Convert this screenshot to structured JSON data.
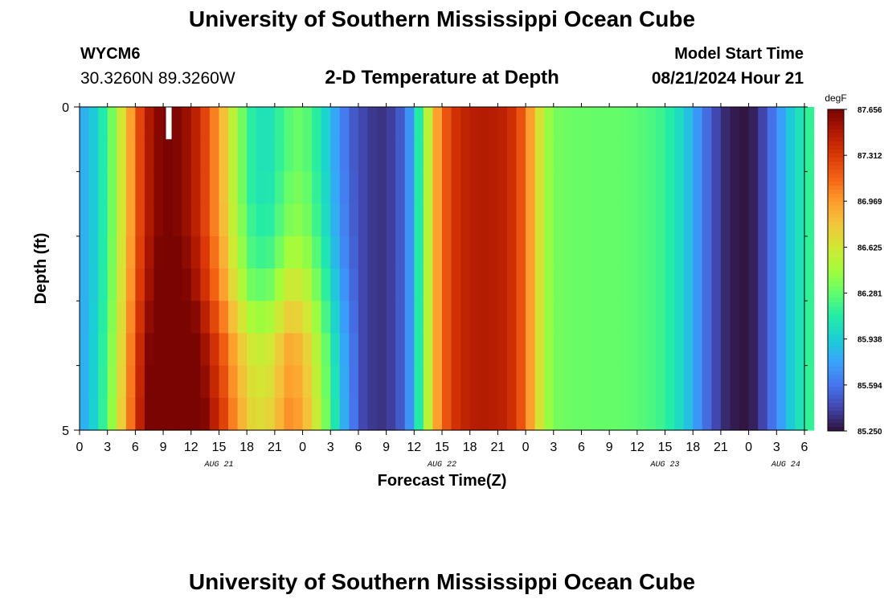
{
  "page": {
    "title": "University of Southern Mississippi Ocean Cube",
    "footer_title": "University of Southern Mississippi Ocean Cube",
    "station_id": "WYCM6",
    "coordinates": "30.3260N  89.3260W",
    "start_label": "Model Start Time",
    "start_value": "08/21/2024 Hour 21",
    "subtitle": "2-D Temperature at Depth"
  },
  "chart_data": {
    "type": "heatmap",
    "title": "2-D Temperature at Depth",
    "xlabel": "Forecast Time(Z)",
    "ylabel": "Depth (ft)",
    "x_ticks": [
      "0",
      "3",
      "6",
      "9",
      "12",
      "15",
      "18",
      "21",
      "0",
      "3",
      "6",
      "9",
      "12",
      "15",
      "18",
      "21",
      "0",
      "3",
      "6",
      "9",
      "12",
      "15",
      "18",
      "21",
      "0",
      "3",
      "6"
    ],
    "date_labels": [
      "AUG 21",
      "AUG 22",
      "AUG 23",
      "AUG 24"
    ],
    "y_ticks": [
      "0",
      "5"
    ],
    "ylim": [
      0,
      5
    ],
    "x_range_hours": [
      0,
      78
    ],
    "depth_levels_ft": [
      0.0,
      0.5,
      1.0,
      1.5,
      2.0,
      2.5,
      3.0,
      3.5,
      4.0,
      4.5
    ],
    "colorbar": {
      "unit": "degF",
      "ticks": [
        "87.656",
        "87.312",
        "86.969",
        "86.625",
        "86.281",
        "85.938",
        "85.594",
        "85.250"
      ],
      "min": 85.25,
      "max": 87.656,
      "colors": [
        "#30123b",
        "#4145ab",
        "#4675ed",
        "#39a2fc",
        "#1bcfd4",
        "#24eca6",
        "#61fc6c",
        "#a4fc3b",
        "#d1e834",
        "#f3c63a",
        "#fe9b2d",
        "#f36315",
        "#d93806",
        "#b11901",
        "#7a0402"
      ]
    },
    "surface_profile_degF": [
      85.82,
      85.92,
      86.09,
      86.33,
      86.63,
      86.95,
      87.26,
      87.49,
      87.62,
      87.66,
      87.63,
      87.56,
      87.44,
      87.26,
      87.05,
      86.82,
      86.55,
      86.32,
      86.12,
      86.05,
      86.05,
      86.15,
      86.25,
      86.3,
      86.25,
      86.12,
      85.96,
      85.78,
      85.62,
      85.5,
      85.43,
      85.38,
      85.36,
      85.4,
      85.5,
      85.7,
      86.1,
      86.55,
      86.95,
      87.2,
      87.35,
      87.42,
      87.46,
      87.47,
      87.46,
      87.44,
      87.36,
      87.2,
      86.95,
      86.65,
      86.42,
      86.33,
      86.31,
      86.3,
      86.3,
      86.29,
      86.29,
      86.29,
      86.28,
      86.27,
      86.25,
      86.22,
      86.18,
      86.11,
      86.01,
      85.88,
      85.72,
      85.56,
      85.43,
      85.33,
      85.28,
      85.26,
      85.3,
      85.42,
      85.58,
      85.75,
      85.92,
      86.05,
      86.15
    ],
    "depth_anomaly_degF": [
      [
        0,
        0,
        0,
        0,
        0,
        0,
        0,
        0,
        0,
        0
      ],
      [
        0,
        0,
        0,
        0,
        0.05,
        0.1,
        0.2,
        0.3,
        0.35,
        0.4
      ],
      [
        0,
        0,
        0,
        0.05,
        0.1,
        0.2,
        0.35,
        0.5,
        0.55,
        0.6
      ],
      [
        0,
        0,
        0.05,
        0.1,
        0.2,
        0.35,
        0.5,
        0.65,
        0.7,
        0.75
      ]
    ],
    "anomaly_anchor_hours": [
      0,
      14,
      18,
      22,
      30
    ]
  }
}
